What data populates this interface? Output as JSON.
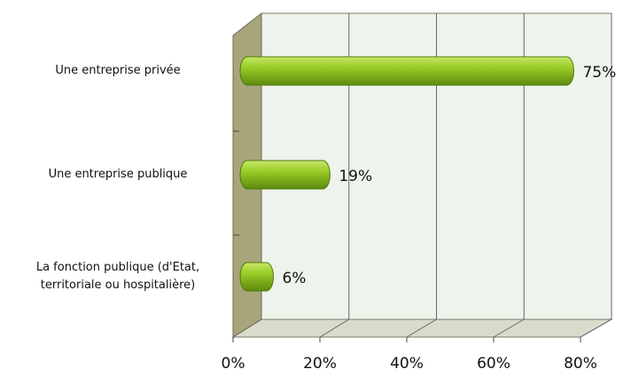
{
  "chart_data": {
    "type": "bar",
    "orientation": "horizontal",
    "categories": [
      "Une entreprise privée",
      "Une entreprise publique",
      "La fonction publique (d'Etat, territoriale ou hospitalière)"
    ],
    "values": [
      75,
      19,
      6
    ],
    "value_labels": [
      "75%",
      "19%",
      "6%"
    ],
    "color": "#8cc21e",
    "xlim": [
      0,
      80
    ],
    "xticks": [
      {
        "value": 0,
        "label": "0%"
      },
      {
        "value": 20,
        "label": "20%"
      },
      {
        "value": 40,
        "label": "40%"
      },
      {
        "value": 60,
        "label": "60%"
      },
      {
        "value": 80,
        "label": "80%"
      }
    ],
    "grid": true
  }
}
